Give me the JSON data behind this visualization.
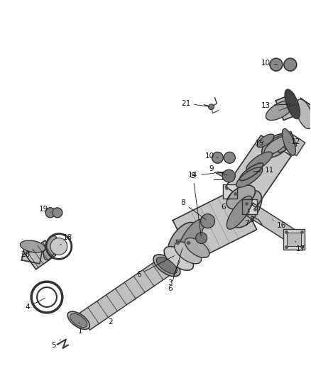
{
  "bg_color": "#ffffff",
  "line_color": "#333333",
  "text_color": "#111111",
  "label_fontsize": 7.5,
  "fig_width": 4.38,
  "fig_height": 5.33,
  "dpi": 100
}
